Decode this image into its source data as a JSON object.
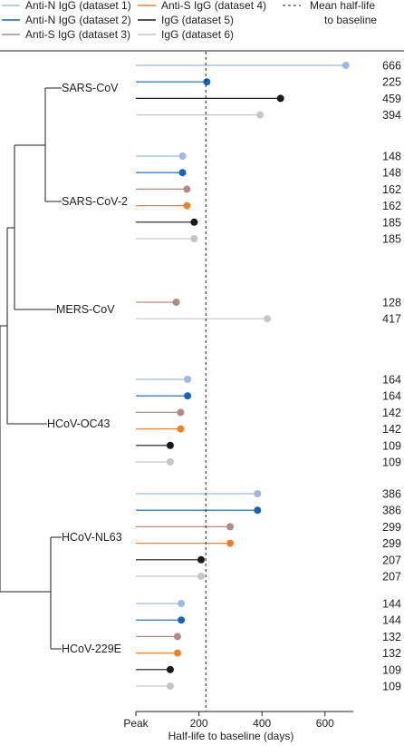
{
  "chart_data": {
    "type": "lollipop",
    "xlabel": "Half-life to baseline (days)",
    "x_ticks": [
      "Peak",
      "200",
      "400",
      "600"
    ],
    "x_tick_values": [
      0,
      200,
      400,
      600
    ],
    "xlim": [
      0,
      690
    ],
    "grid": false,
    "legend_position": "top",
    "mean_line": {
      "label": "Mean half-life to baseline",
      "label_lines": [
        "Mean half-life",
        "to baseline"
      ],
      "value": 222
    },
    "series": [
      {
        "key": "s1",
        "name": "Anti-N IgG (dataset 1)",
        "color": "#9fb8df",
        "line_color": "#9fb8df"
      },
      {
        "key": "s2",
        "name": "Anti-N IgG (dataset 2)",
        "color": "#1565b4",
        "line_color": "#1565b4"
      },
      {
        "key": "s3",
        "name": "Anti-S IgG (dataset 3)",
        "color": "#b08a86",
        "line_color": "#b08a86"
      },
      {
        "key": "s4",
        "name": "Anti-S IgG (dataset 4)",
        "color": "#ef7f2e",
        "line_color": "#ef7f2e"
      },
      {
        "key": "s5",
        "name": "IgG (dataset 5)",
        "color": "#1a1a1a",
        "line_color": "#1a1a1a"
      },
      {
        "key": "s6",
        "name": "IgG (dataset 6)",
        "color": "#c6c6c6",
        "line_color": "#c6c6c6"
      }
    ],
    "groups": [
      {
        "name": "SARS-CoV",
        "rows": [
          {
            "series": "s1",
            "value": 666,
            "label": "666"
          },
          {
            "series": "s2",
            "value": 225,
            "label": "225"
          },
          {
            "series": "s5",
            "value": 459,
            "label": "459"
          },
          {
            "series": "s6",
            "value": 394,
            "label": "394"
          }
        ]
      },
      {
        "name": "SARS-CoV-2",
        "rows": [
          {
            "series": "s1",
            "value": 148,
            "label": "148"
          },
          {
            "series": "s2",
            "value": 148,
            "label": "148"
          },
          {
            "series": "s3",
            "value": 162,
            "label": "162"
          },
          {
            "series": "s4",
            "value": 162,
            "label": "162"
          },
          {
            "series": "s5",
            "value": 185,
            "label": "185"
          },
          {
            "series": "s6",
            "value": 185,
            "label": "185"
          }
        ]
      },
      {
        "name": "MERS-CoV",
        "rows": [
          {
            "series": "s3",
            "value": 128,
            "label": "128"
          },
          {
            "series": "s6",
            "value": 417,
            "label": "417"
          }
        ]
      },
      {
        "name": "HCoV-OC43",
        "rows": [
          {
            "series": "s1",
            "value": 164,
            "label": "164"
          },
          {
            "series": "s2",
            "value": 164,
            "label": "164"
          },
          {
            "series": "s3",
            "value": 142,
            "label": "142"
          },
          {
            "series": "s4",
            "value": 142,
            "label": "142"
          },
          {
            "series": "s5",
            "value": 109,
            "label": "109"
          },
          {
            "series": "s6",
            "value": 109,
            "label": "109"
          }
        ]
      },
      {
        "name": "HCoV-NL63",
        "rows": [
          {
            "series": "s1",
            "value": 386,
            "label": "386"
          },
          {
            "series": "s2",
            "value": 386,
            "label": "386"
          },
          {
            "series": "s3",
            "value": 299,
            "label": "299"
          },
          {
            "series": "s4",
            "value": 299,
            "label": "299"
          },
          {
            "series": "s5",
            "value": 207,
            "label": "207"
          },
          {
            "series": "s6",
            "value": 207,
            "label": "207"
          }
        ]
      },
      {
        "name": "HCoV-229E",
        "rows": [
          {
            "series": "s1",
            "value": 144,
            "label": "144"
          },
          {
            "series": "s2",
            "value": 144,
            "label": "144"
          },
          {
            "series": "s3",
            "value": 132,
            "label": "132"
          },
          {
            "series": "s4",
            "value": 132,
            "label": "132"
          },
          {
            "series": "s5",
            "value": 109,
            "label": "109"
          },
          {
            "series": "s6",
            "value": 109,
            "label": "109"
          }
        ]
      }
    ],
    "phylogeny": "((SARS-CoV, SARS-CoV-2), MERS-CoV), HCoV-OC43), (HCoV-NL63, HCoV-229E)"
  }
}
